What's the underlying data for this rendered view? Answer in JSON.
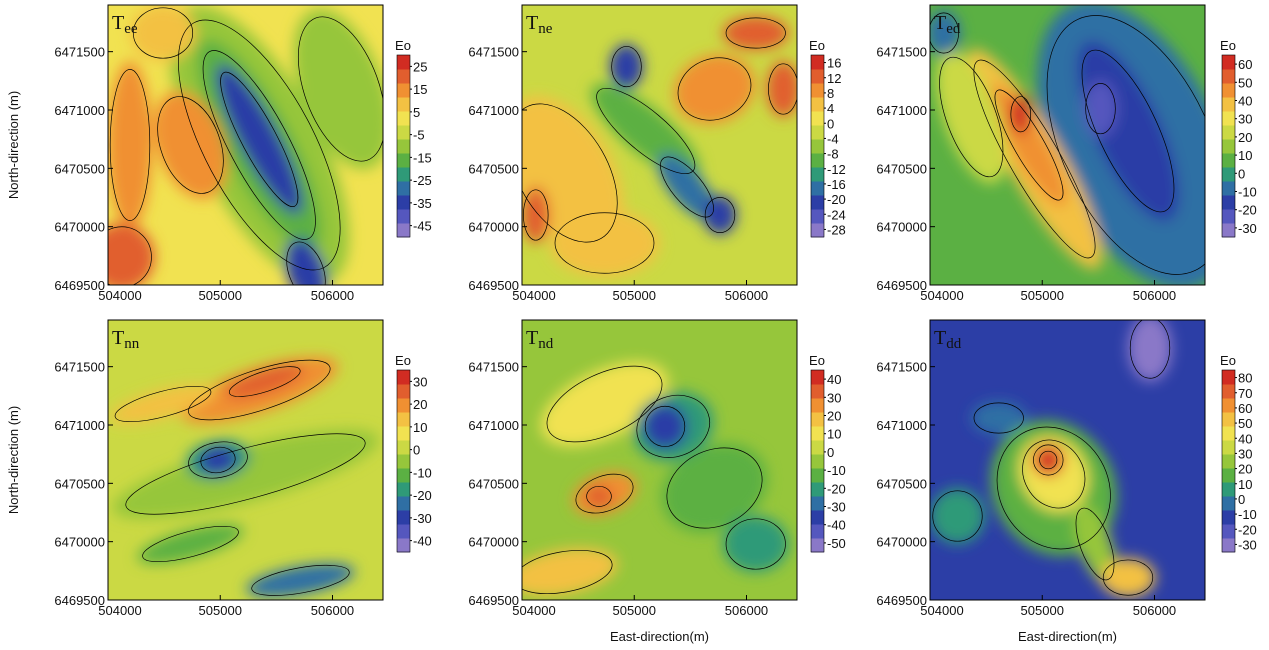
{
  "chart_data": [
    {
      "type": "contour",
      "title": "T",
      "title_sub": "ee",
      "ylabel": "North-direction (m)",
      "xlim": [
        504000,
        506450
      ],
      "xticks": [
        504000,
        505000,
        506000
      ],
      "ylim": [
        6469500,
        6471900
      ],
      "yticks": [
        6469500,
        6470000,
        6470500,
        6471000,
        6471500
      ],
      "colorbar": {
        "label": "Eo",
        "clim": [
          -50,
          30
        ],
        "ticks": [
          25,
          15,
          5,
          -5,
          -15,
          -25,
          -35,
          -45
        ]
      },
      "colors": [
        "#8a78c8",
        "#5557be",
        "#2c3ea6",
        "#2f6fa4",
        "#2f9a78",
        "#5bb043",
        "#96c63b",
        "#cbd944",
        "#f1e251",
        "#f3c143",
        "#f09032",
        "#e15e2e",
        "#d12c22"
      ]
    },
    {
      "type": "contour",
      "title": "T",
      "title_sub": "ne",
      "xlim": [
        504000,
        506450
      ],
      "xticks": [
        504000,
        505000,
        506000
      ],
      "ylim": [
        6469500,
        6471900
      ],
      "yticks": [
        6469500,
        6470000,
        6470500,
        6471000,
        6471500
      ],
      "colorbar": {
        "label": "Eo",
        "clim": [
          -30,
          18
        ],
        "ticks": [
          16,
          12,
          8,
          4,
          0,
          -4,
          -8,
          -12,
          -16,
          -20,
          -24,
          -28
        ]
      },
      "colors": [
        "#8a78c8",
        "#5557be",
        "#2c3ea6",
        "#2f6fa4",
        "#2f9a78",
        "#5bb043",
        "#96c63b",
        "#cbd944",
        "#f1e251",
        "#f3c143",
        "#f09032",
        "#e15e2e",
        "#d12c22"
      ]
    },
    {
      "type": "contour",
      "title": "T",
      "title_sub": "ed",
      "xlim": [
        504000,
        506450
      ],
      "xticks": [
        504000,
        505000,
        506000
      ],
      "ylim": [
        6469500,
        6471900
      ],
      "yticks": [
        6469500,
        6470000,
        6470500,
        6471000,
        6471500
      ],
      "colorbar": {
        "label": "Eo",
        "clim": [
          -35,
          65
        ],
        "ticks": [
          60,
          50,
          40,
          30,
          20,
          10,
          0,
          -10,
          -20,
          -30
        ]
      },
      "colors": [
        "#8a78c8",
        "#5557be",
        "#2c3ea6",
        "#2f6fa4",
        "#2f9a78",
        "#5bb043",
        "#96c63b",
        "#cbd944",
        "#f1e251",
        "#f3c143",
        "#f09032",
        "#e15e2e",
        "#d12c22"
      ]
    },
    {
      "type": "contour",
      "title": "T",
      "title_sub": "nn",
      "ylabel": "North-direction (m)",
      "xlim": [
        504000,
        506450
      ],
      "xticks": [
        504000,
        505000,
        506000
      ],
      "ylim": [
        6469500,
        6471900
      ],
      "yticks": [
        6469500,
        6470000,
        6470500,
        6471000,
        6471500
      ],
      "colorbar": {
        "label": "Eo",
        "clim": [
          -45,
          35
        ],
        "ticks": [
          30,
          20,
          10,
          0,
          -10,
          -20,
          -30,
          -40
        ]
      },
      "colors": [
        "#8a78c8",
        "#5557be",
        "#2c3ea6",
        "#2f6fa4",
        "#2f9a78",
        "#5bb043",
        "#96c63b",
        "#cbd944",
        "#f1e251",
        "#f3c143",
        "#f09032",
        "#e15e2e",
        "#d12c22"
      ]
    },
    {
      "type": "contour",
      "title": "T",
      "title_sub": "nd",
      "xlabel": "East-direction(m)",
      "xlim": [
        504000,
        506450
      ],
      "xticks": [
        504000,
        505000,
        506000
      ],
      "ylim": [
        6469500,
        6471900
      ],
      "yticks": [
        6469500,
        6470000,
        6470500,
        6471000,
        6471500
      ],
      "colorbar": {
        "label": "Eo",
        "clim": [
          -55,
          45
        ],
        "ticks": [
          40,
          30,
          20,
          10,
          0,
          -10,
          -20,
          -30,
          -40,
          -50
        ]
      },
      "colors": [
        "#8a78c8",
        "#5557be",
        "#2c3ea6",
        "#2f6fa4",
        "#2f9a78",
        "#5bb043",
        "#96c63b",
        "#cbd944",
        "#f1e251",
        "#f3c143",
        "#f09032",
        "#e15e2e",
        "#d12c22"
      ]
    },
    {
      "type": "contour",
      "title": "T",
      "title_sub": "dd",
      "xlabel": "East-direction(m)",
      "xlim": [
        504000,
        506450
      ],
      "xticks": [
        504000,
        505000,
        506000
      ],
      "ylim": [
        6469500,
        6471900
      ],
      "yticks": [
        6469500,
        6470000,
        6470500,
        6471000,
        6471500
      ],
      "colorbar": {
        "label": "Eo",
        "clim": [
          -35,
          85
        ],
        "ticks": [
          80,
          70,
          60,
          50,
          40,
          30,
          20,
          10,
          0,
          -10,
          -20,
          -30
        ]
      },
      "colors": [
        "#8a78c8",
        "#5557be",
        "#2c3ea6",
        "#2f6fa4",
        "#2f9a78",
        "#5bb043",
        "#96c63b",
        "#cbd944",
        "#f1e251",
        "#f3c143",
        "#f09032",
        "#e15e2e",
        "#d12c22"
      ]
    }
  ]
}
